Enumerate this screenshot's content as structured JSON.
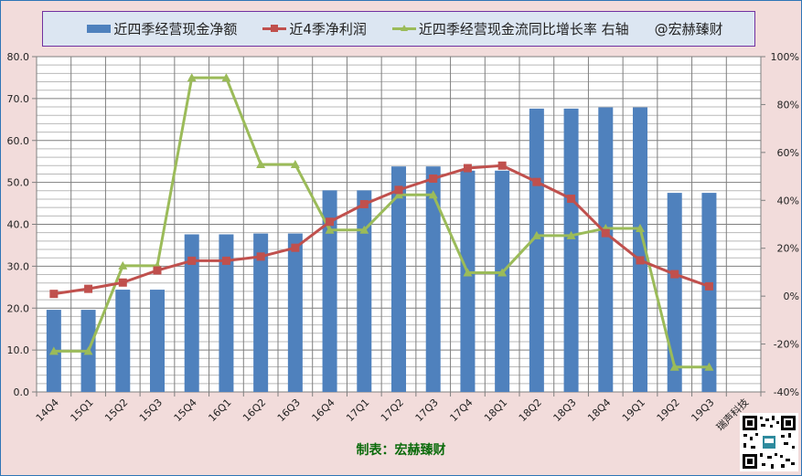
{
  "legend": {
    "bar_label": "近四季经营现金净额",
    "line1_label": "近4季净利润",
    "line2_label": "近四季经营现金流同比增长率 右轴",
    "tag": "@宏赫臻财"
  },
  "footer": "制表：宏赫臻财",
  "colors": {
    "bar": "#4F81BD",
    "line1": "#C0504D",
    "line2": "#9BBB59",
    "background": "#F2DCDB",
    "legend_bg": "#DCE6F2",
    "legend_border": "#7030A0",
    "footer_text": "#0B6B0B"
  },
  "chart_data": {
    "type": "bar",
    "title": "",
    "xlabel": "",
    "ylabel": "",
    "categories": [
      "14Q4",
      "15Q1",
      "15Q2",
      "15Q3",
      "15Q4",
      "16Q1",
      "16Q2",
      "16Q3",
      "16Q4",
      "17Q1",
      "17Q2",
      "17Q3",
      "17Q4",
      "18Q1",
      "18Q2",
      "18Q3",
      "18Q4",
      "19Q1",
      "19Q2",
      "19Q3",
      "瑞声科技"
    ],
    "ylim": [
      0,
      80
    ],
    "y_ticks": [
      "0.0",
      "10.0",
      "20.0",
      "30.0",
      "40.0",
      "50.0",
      "60.0",
      "70.0",
      "80.0"
    ],
    "y2lim": [
      -40,
      100
    ],
    "y2_ticks": [
      "-40%",
      "-20%",
      "0%",
      "20%",
      "40%",
      "60%",
      "80%",
      "100%"
    ],
    "grid": true,
    "legend_position": "top",
    "series": [
      {
        "name": "近四季经营现金净额",
        "type": "bar",
        "axis": "left",
        "values": [
          19.6,
          19.6,
          24.4,
          24.4,
          37.6,
          37.6,
          37.8,
          37.8,
          48.1,
          48.1,
          53.8,
          53.8,
          52.8,
          52.8,
          67.6,
          67.6,
          67.9,
          67.9,
          47.5,
          47.5,
          null
        ]
      },
      {
        "name": "近4季净利润",
        "type": "line",
        "axis": "left",
        "marker": "square",
        "values": [
          23.4,
          24.6,
          26.1,
          29.0,
          31.3,
          31.3,
          32.3,
          34.4,
          40.6,
          44.8,
          48.2,
          50.9,
          53.4,
          54.0,
          50.1,
          46.1,
          37.9,
          31.4,
          28.1,
          25.2,
          null
        ]
      },
      {
        "name": "近四季经营现金流同比增长率 右轴",
        "type": "line",
        "axis": "right",
        "marker": "triangle",
        "values": [
          -23,
          -23,
          12.7,
          12.7,
          91.2,
          91.2,
          55,
          55,
          27.6,
          27.6,
          42.3,
          42.3,
          9.8,
          9.8,
          25.3,
          25.3,
          28.3,
          28.3,
          -29.6,
          -29.6,
          null
        ]
      }
    ]
  }
}
